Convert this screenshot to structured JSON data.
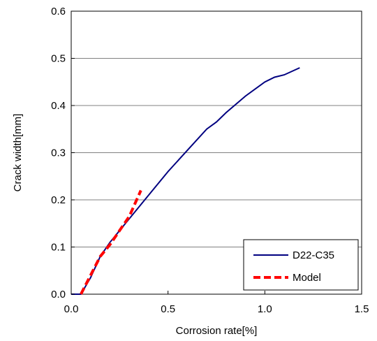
{
  "chart_data": {
    "type": "line",
    "title": "",
    "xlabel": "Corrosion rate[%]",
    "ylabel": "Crack width[mm]",
    "xlim": [
      0,
      1.5
    ],
    "ylim": [
      0,
      0.6
    ],
    "x_ticks": [
      "0.0",
      "0.5",
      "1.0",
      "1.5"
    ],
    "y_ticks": [
      "0.0",
      "0.1",
      "0.2",
      "0.3",
      "0.4",
      "0.5",
      "0.6"
    ],
    "grid": "horizontal",
    "legend_position": "bottom-right",
    "series": [
      {
        "name": "D22-C35",
        "color": "#000080",
        "style": "solid",
        "x": [
          0.0,
          0.05,
          0.1,
          0.15,
          0.2,
          0.3,
          0.4,
          0.5,
          0.6,
          0.7,
          0.75,
          0.8,
          0.9,
          1.0,
          1.05,
          1.1,
          1.18
        ],
        "y": [
          0.0,
          0.0,
          0.035,
          0.08,
          0.11,
          0.16,
          0.21,
          0.26,
          0.305,
          0.35,
          0.365,
          0.385,
          0.42,
          0.45,
          0.46,
          0.465,
          0.48
        ]
      },
      {
        "name": "Model",
        "color": "#ff0000",
        "style": "dashed",
        "x": [
          0.05,
          0.1,
          0.15,
          0.2,
          0.25,
          0.3,
          0.36
        ],
        "y": [
          0.0,
          0.04,
          0.08,
          0.105,
          0.135,
          0.165,
          0.22
        ]
      }
    ]
  }
}
